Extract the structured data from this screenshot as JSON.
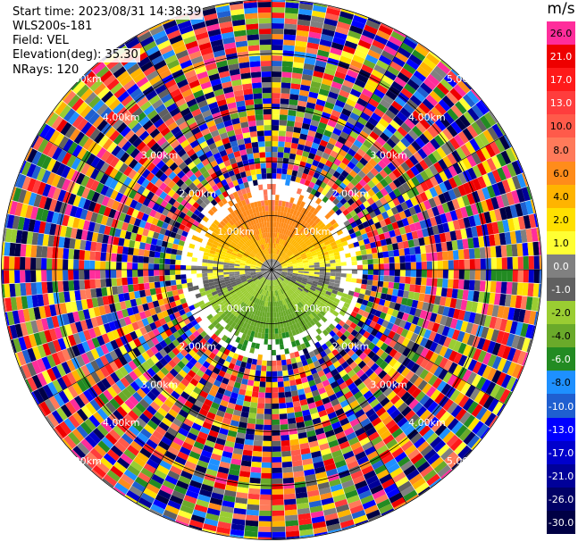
{
  "header": {
    "start_time": "Start time: 2023/08/31 14:38:39",
    "instrument": "WLS200s-181",
    "field": "Field: VEL",
    "elevation": "Elevation(deg): 35.30",
    "nrays": "NRays: 120"
  },
  "colorbar": {
    "unit": "m/s",
    "labels": [
      "26.0",
      "21.0",
      "17.0",
      "13.0",
      "10.0",
      "8.0",
      "6.0",
      "4.0",
      "2.0",
      "1.0",
      "0.0",
      "-1.0",
      "-2.0",
      "-4.0",
      "-6.0",
      "-8.0",
      "-10.0",
      "-13.0",
      "-17.0",
      "-21.0",
      "-26.0",
      "-30.0"
    ],
    "colors": [
      "#ff2d9b",
      "#ee0000",
      "#ff1a1a",
      "#ff3d3d",
      "#ff5a4a",
      "#ff7a5a",
      "#ff8c1a",
      "#ffb400",
      "#ffe000",
      "#ffff33",
      "#808080",
      "#606060",
      "#9acd32",
      "#6aaa2a",
      "#228b22",
      "#1e90ff",
      "#1f5fd0",
      "#0000ff",
      "#0000cc",
      "#000099",
      "#000066",
      "#000044"
    ]
  },
  "chart_data": {
    "type": "heatmap",
    "subtype": "ppi",
    "field": "VEL",
    "units": "m/s",
    "nrays": 120,
    "range_rings_km": [
      1.0,
      2.0,
      3.0,
      4.0,
      5.0
    ],
    "range_ring_labels": [
      "1.00km",
      "2.00km",
      "3.00km",
      "4.00km",
      "5.00km"
    ],
    "clim": [
      -30.0,
      26.0
    ],
    "pattern": "near field (< ~1.2 km) shows coherent bipolar velocity: positive (yellow/orange) north, negative (green/blue) south; beyond ~1.3 km noise",
    "grid": true
  }
}
